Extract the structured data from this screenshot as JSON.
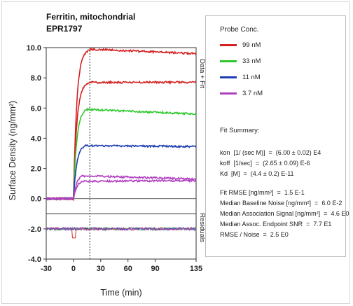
{
  "chart_data": {
    "type": "line",
    "title": "Ferritin, mitochondrial",
    "subtitle": "EPR1797",
    "xlabel": "Time (min)",
    "ylabel": "Surface Density (ng/mm²)",
    "xlim": [
      -30,
      135
    ],
    "ylim": [
      -4.0,
      10.0
    ],
    "x_ticks": [
      "-30",
      "0",
      "30",
      "60",
      "90",
      "135"
    ],
    "x_tick_values": [
      -30,
      0,
      30,
      60,
      90,
      135
    ],
    "y_ticks": [
      "10.0",
      "8.0",
      "6.0",
      "4.0",
      "2.0",
      "0.0",
      "-2.0",
      "-4.0"
    ],
    "y_tick_values": [
      10,
      8,
      6,
      4,
      2,
      0,
      -2,
      -4
    ],
    "right_label_upper": "Data + Fit",
    "right_label_lower": "Residuals",
    "dissociation_start": 18,
    "grid": false,
    "legend_position": "right panel",
    "series": [
      {
        "name": "99 nM",
        "color": "#d42020",
        "plateau": 9.9,
        "end": 9.6,
        "amp": 9.9
      },
      {
        "name": "99 nM",
        "color": "#d42020",
        "plateau": 7.7,
        "end": 7.7,
        "amp": 7.7
      },
      {
        "name": "33 nM",
        "color": "#2ec82e",
        "plateau": 5.9,
        "end": 5.6,
        "amp": 6.0
      },
      {
        "name": "11 nM",
        "color": "#1c3cb0",
        "plateau": 3.5,
        "end": 3.45,
        "amp": 3.6
      },
      {
        "name": "3.7 nM",
        "color": "#b040c0",
        "plateau": 1.5,
        "end": 1.3,
        "amp": 1.6
      },
      {
        "name": "3.7 nM",
        "color": "#b040c0",
        "plateau": 1.15,
        "end": 1.2,
        "amp": 1.2
      }
    ],
    "residuals_level": -2.0
  },
  "legend": {
    "title": "Probe Conc.",
    "items": [
      {
        "label": "99 nM",
        "color": "#d42020"
      },
      {
        "label": "33 nM",
        "color": "#2ec82e"
      },
      {
        "label": "11 nM",
        "color": "#1c3cb0"
      },
      {
        "label": "3.7 nM",
        "color": "#b040c0"
      }
    ]
  },
  "fit_summary": {
    "title": "Fit Summary:",
    "kon": "kon  [1/ (sec M)]  =  (6.00 ± 0.02) E4",
    "koff": "koff  [1/sec]  =  (2.65 ± 0.09) E-6",
    "kd": "Kd  [M]  =  (4.4 ± 0.2) E-11",
    "rmse": "Fit RMSE [ng/mm²]  =  1.5 E-1",
    "baseline_noise": "Median Baseline Noise [ng/mm²]  =  6.0 E-2",
    "assoc_signal": "Median Association Signal [ng/mm²]  =  4.6 E0",
    "endpoint_snr": "Median Assoc. Endpoint SNR  =  7.7 E1",
    "rmse_noise": "RMSE / Noise  =  2.5 E0"
  }
}
